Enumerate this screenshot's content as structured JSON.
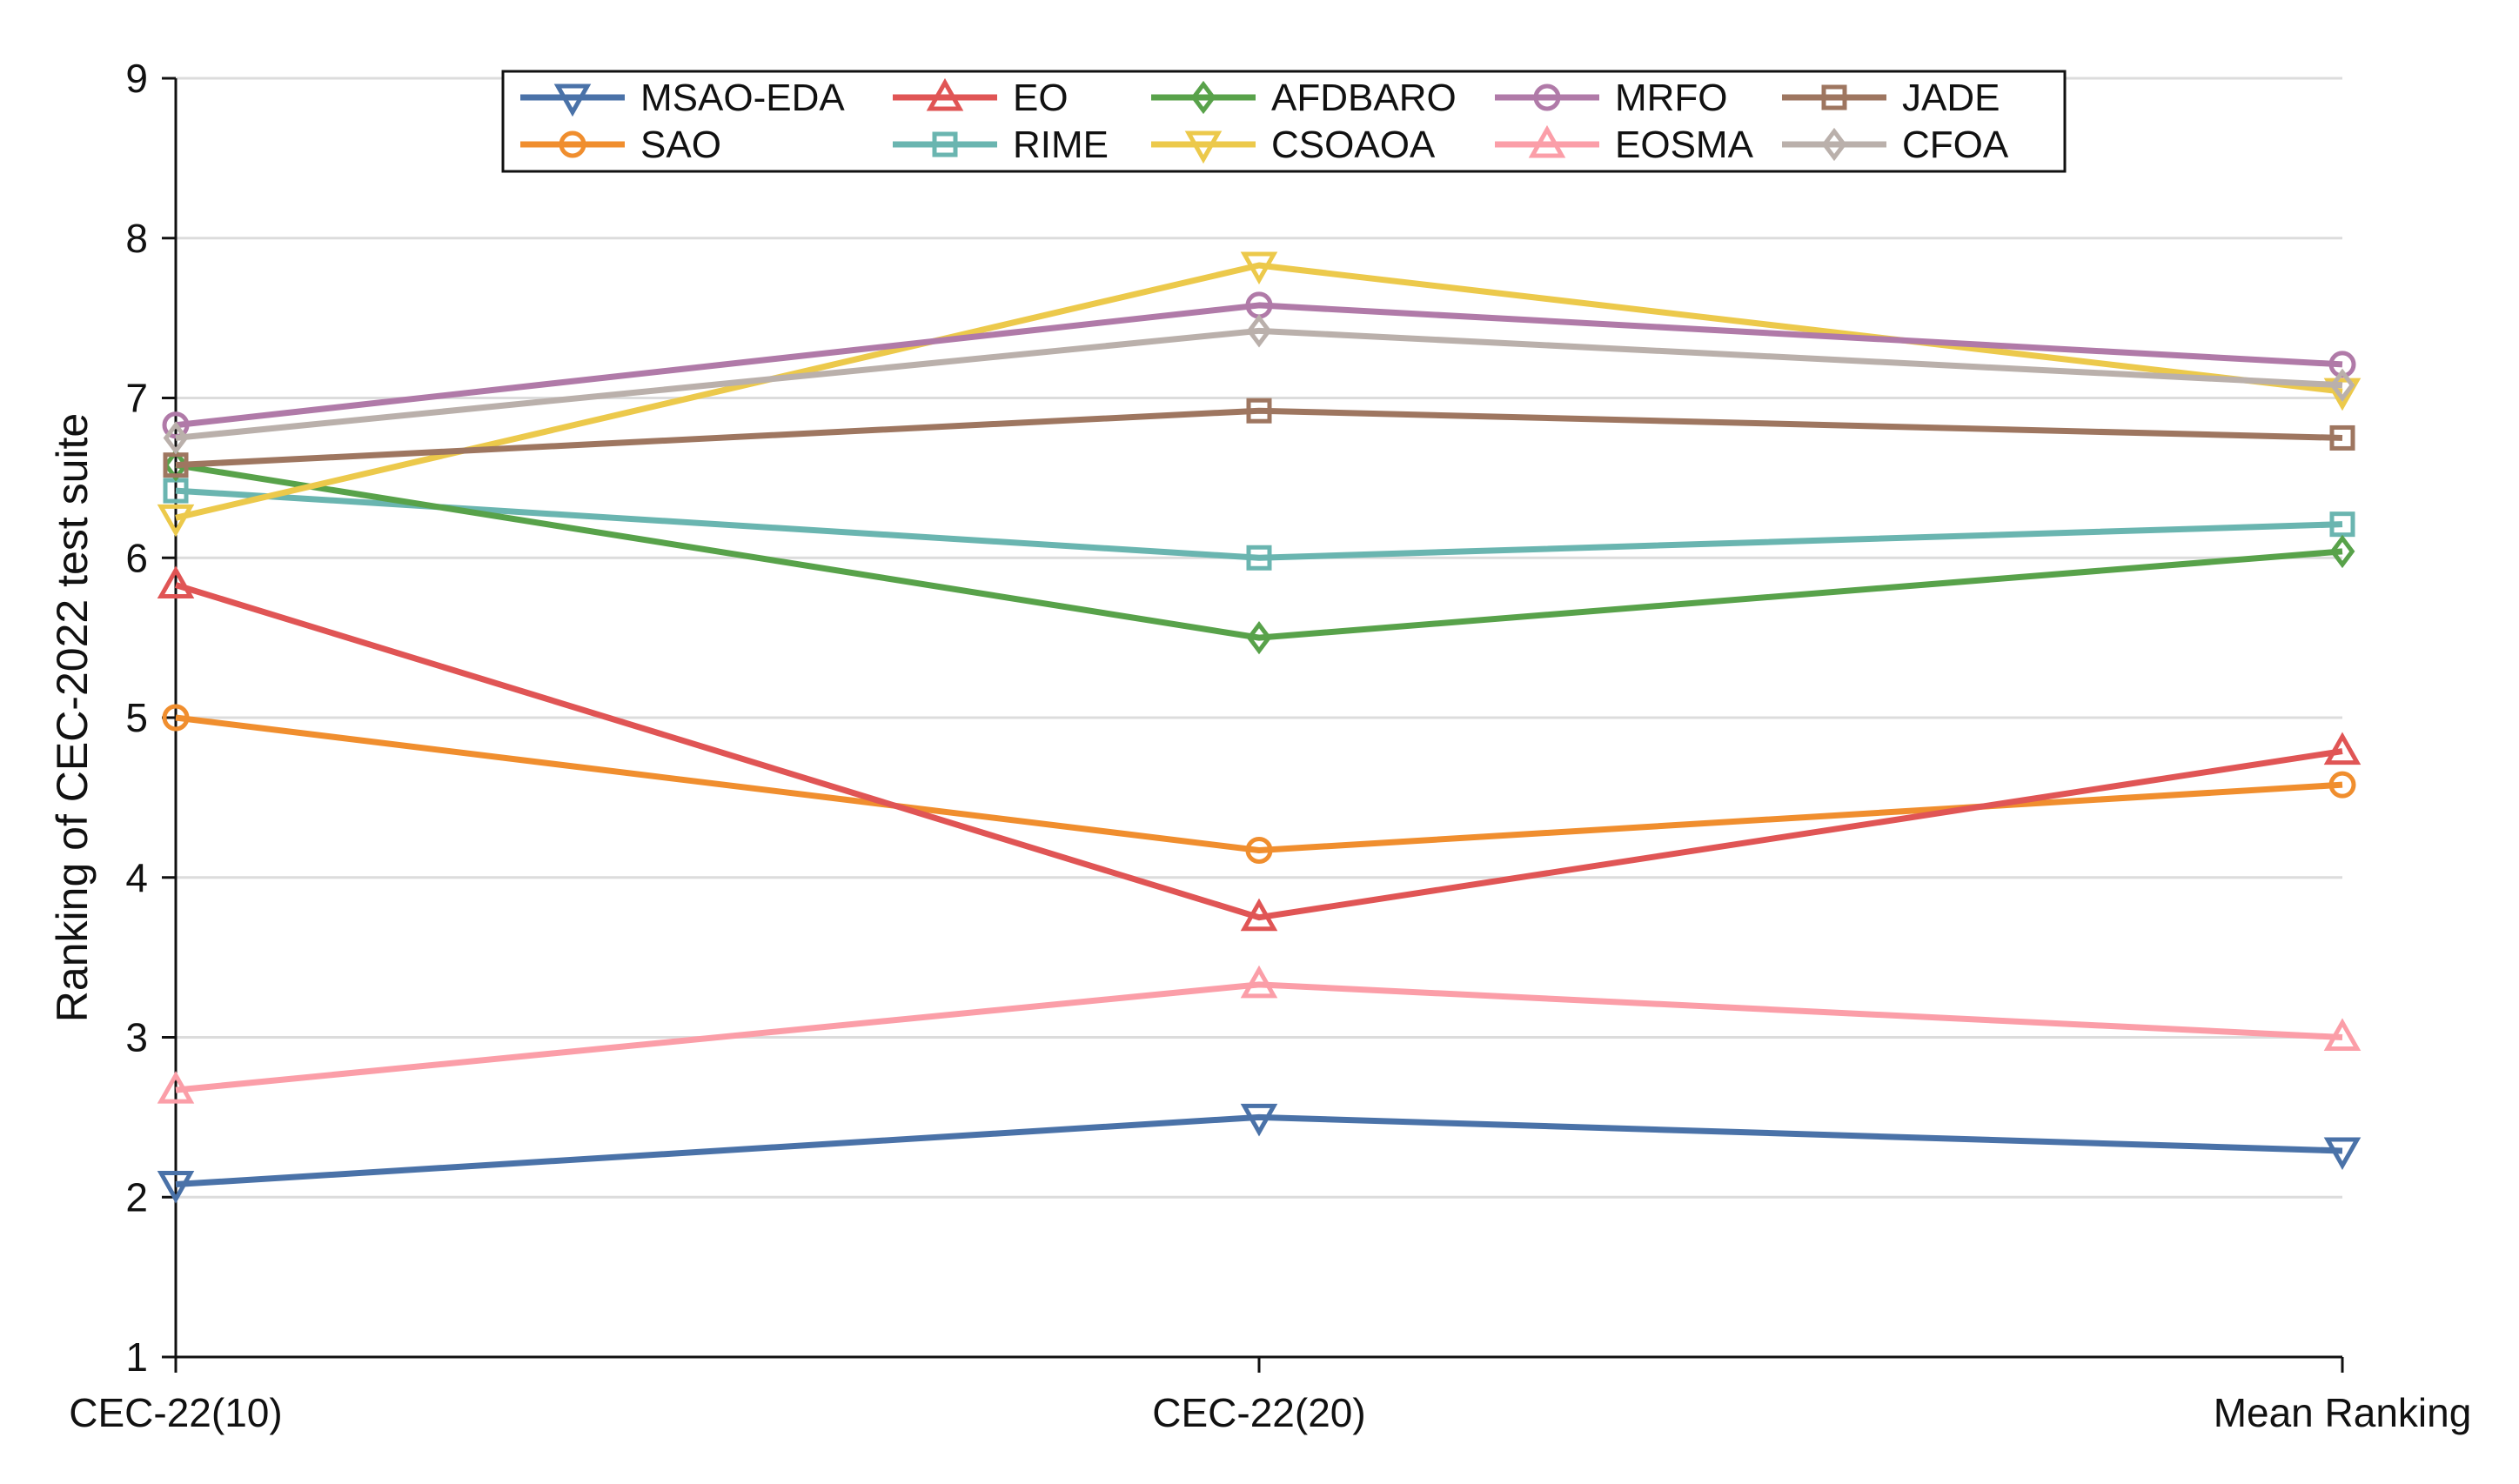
{
  "chart_data": {
    "type": "line",
    "title": "",
    "xlabel": "",
    "ylabel": "Ranking of CEC-2022 test suite",
    "categories": [
      "CEC-22(10)",
      "CEC-22(20)",
      "Mean Ranking"
    ],
    "ylim": [
      1,
      9
    ],
    "yticks": [
      1,
      2,
      3,
      4,
      5,
      6,
      7,
      8,
      9
    ],
    "grid": "horizontal",
    "legend_position": "top-center",
    "series": [
      {
        "name": "MSAO-EDA",
        "values": [
          2.08,
          2.5,
          2.29
        ],
        "color": "#4a72a8",
        "marker": "triangle-down"
      },
      {
        "name": "SAO",
        "values": [
          5.0,
          4.17,
          4.58
        ],
        "color": "#f08e2e",
        "marker": "circle"
      },
      {
        "name": "EO",
        "values": [
          5.83,
          3.75,
          4.79
        ],
        "color": "#e05555",
        "marker": "triangle-up"
      },
      {
        "name": "RIME",
        "values": [
          6.42,
          6.0,
          6.21
        ],
        "color": "#6ab5b0",
        "marker": "square"
      },
      {
        "name": "AFDBARO",
        "values": [
          6.58,
          5.5,
          6.04
        ],
        "color": "#58a24a",
        "marker": "diamond"
      },
      {
        "name": "CSOAOA",
        "values": [
          6.25,
          7.83,
          7.04
        ],
        "color": "#ecc94b",
        "marker": "triangle-down"
      },
      {
        "name": "MRFO",
        "values": [
          6.83,
          7.58,
          7.21
        ],
        "color": "#b07aa8",
        "marker": "circle"
      },
      {
        "name": "EOSMA",
        "values": [
          2.67,
          3.33,
          3.0
        ],
        "color": "#fb9ea8",
        "marker": "triangle-up"
      },
      {
        "name": "JADE",
        "values": [
          6.58,
          6.92,
          6.75
        ],
        "color": "#9e7660",
        "marker": "square"
      },
      {
        "name": "CFOA",
        "values": [
          6.75,
          7.42,
          7.08
        ],
        "color": "#bab0ab",
        "marker": "diamond"
      }
    ]
  }
}
